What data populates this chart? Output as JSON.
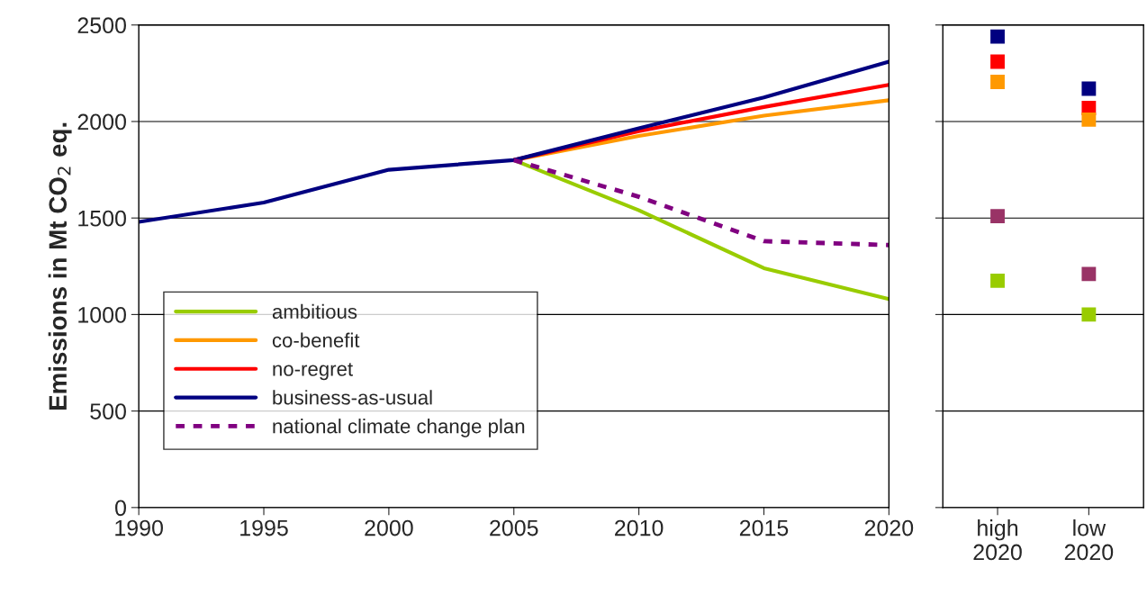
{
  "chart_data": [
    {
      "type": "line",
      "ylabel": "Emissions in Mt CO$_{2}$ eq.",
      "xlim": [
        1990,
        2020
      ],
      "xticks": [
        1990,
        1995,
        2000,
        2005,
        2010,
        2015,
        2020
      ],
      "ylim": [
        0,
        2500
      ],
      "yticks": [
        0,
        500,
        1000,
        1500,
        2000,
        2500
      ],
      "grid": "y",
      "legend": "bottom left",
      "series": [
        {
          "name": "ambitious",
          "color": "#99cc00",
          "x": [
            2005,
            2010,
            2015,
            2020
          ],
          "values": [
            1800,
            1540,
            1240,
            1080
          ]
        },
        {
          "name": "co-benefit",
          "color": "#ff9900",
          "x": [
            2005,
            2010,
            2015,
            2020
          ],
          "values": [
            1800,
            1925,
            2030,
            2110
          ]
        },
        {
          "name": "no-regret",
          "color": "#ff0000",
          "x": [
            2005,
            2010,
            2015,
            2020
          ],
          "values": [
            1800,
            1950,
            2075,
            2190
          ]
        },
        {
          "name": "business-as-usual",
          "color": "#000080",
          "x": [
            1990,
            1995,
            2000,
            2005,
            2010,
            2015,
            2020
          ],
          "values": [
            1480,
            1580,
            1750,
            1800,
            1965,
            2125,
            2310
          ]
        },
        {
          "name": "national climate change plan",
          "color": "#800080",
          "line_style": "dashed",
          "x": [
            2005,
            2010,
            2015,
            2020
          ],
          "values": [
            1800,
            1610,
            1380,
            1360
          ]
        }
      ]
    },
    {
      "type": "scatter",
      "categories": [
        "high\n2020",
        "low\n2020"
      ],
      "ylim": [
        0,
        2500
      ],
      "yticks": [
        0,
        500,
        1000,
        1500,
        2000,
        2500
      ],
      "grid": "y",
      "tick_labels": "x",
      "marker": "square",
      "series": [
        {
          "color": "#000080",
          "values": [
            2440,
            2170
          ]
        },
        {
          "color": "#ff0000",
          "values": [
            2310,
            2070
          ]
        },
        {
          "color": "#ff9900",
          "values": [
            2205,
            2010
          ]
        },
        {
          "color": "#993366",
          "values": [
            1510,
            1210
          ]
        },
        {
          "color": "#99cc00",
          "values": [
            1175,
            1000
          ]
        }
      ]
    }
  ]
}
